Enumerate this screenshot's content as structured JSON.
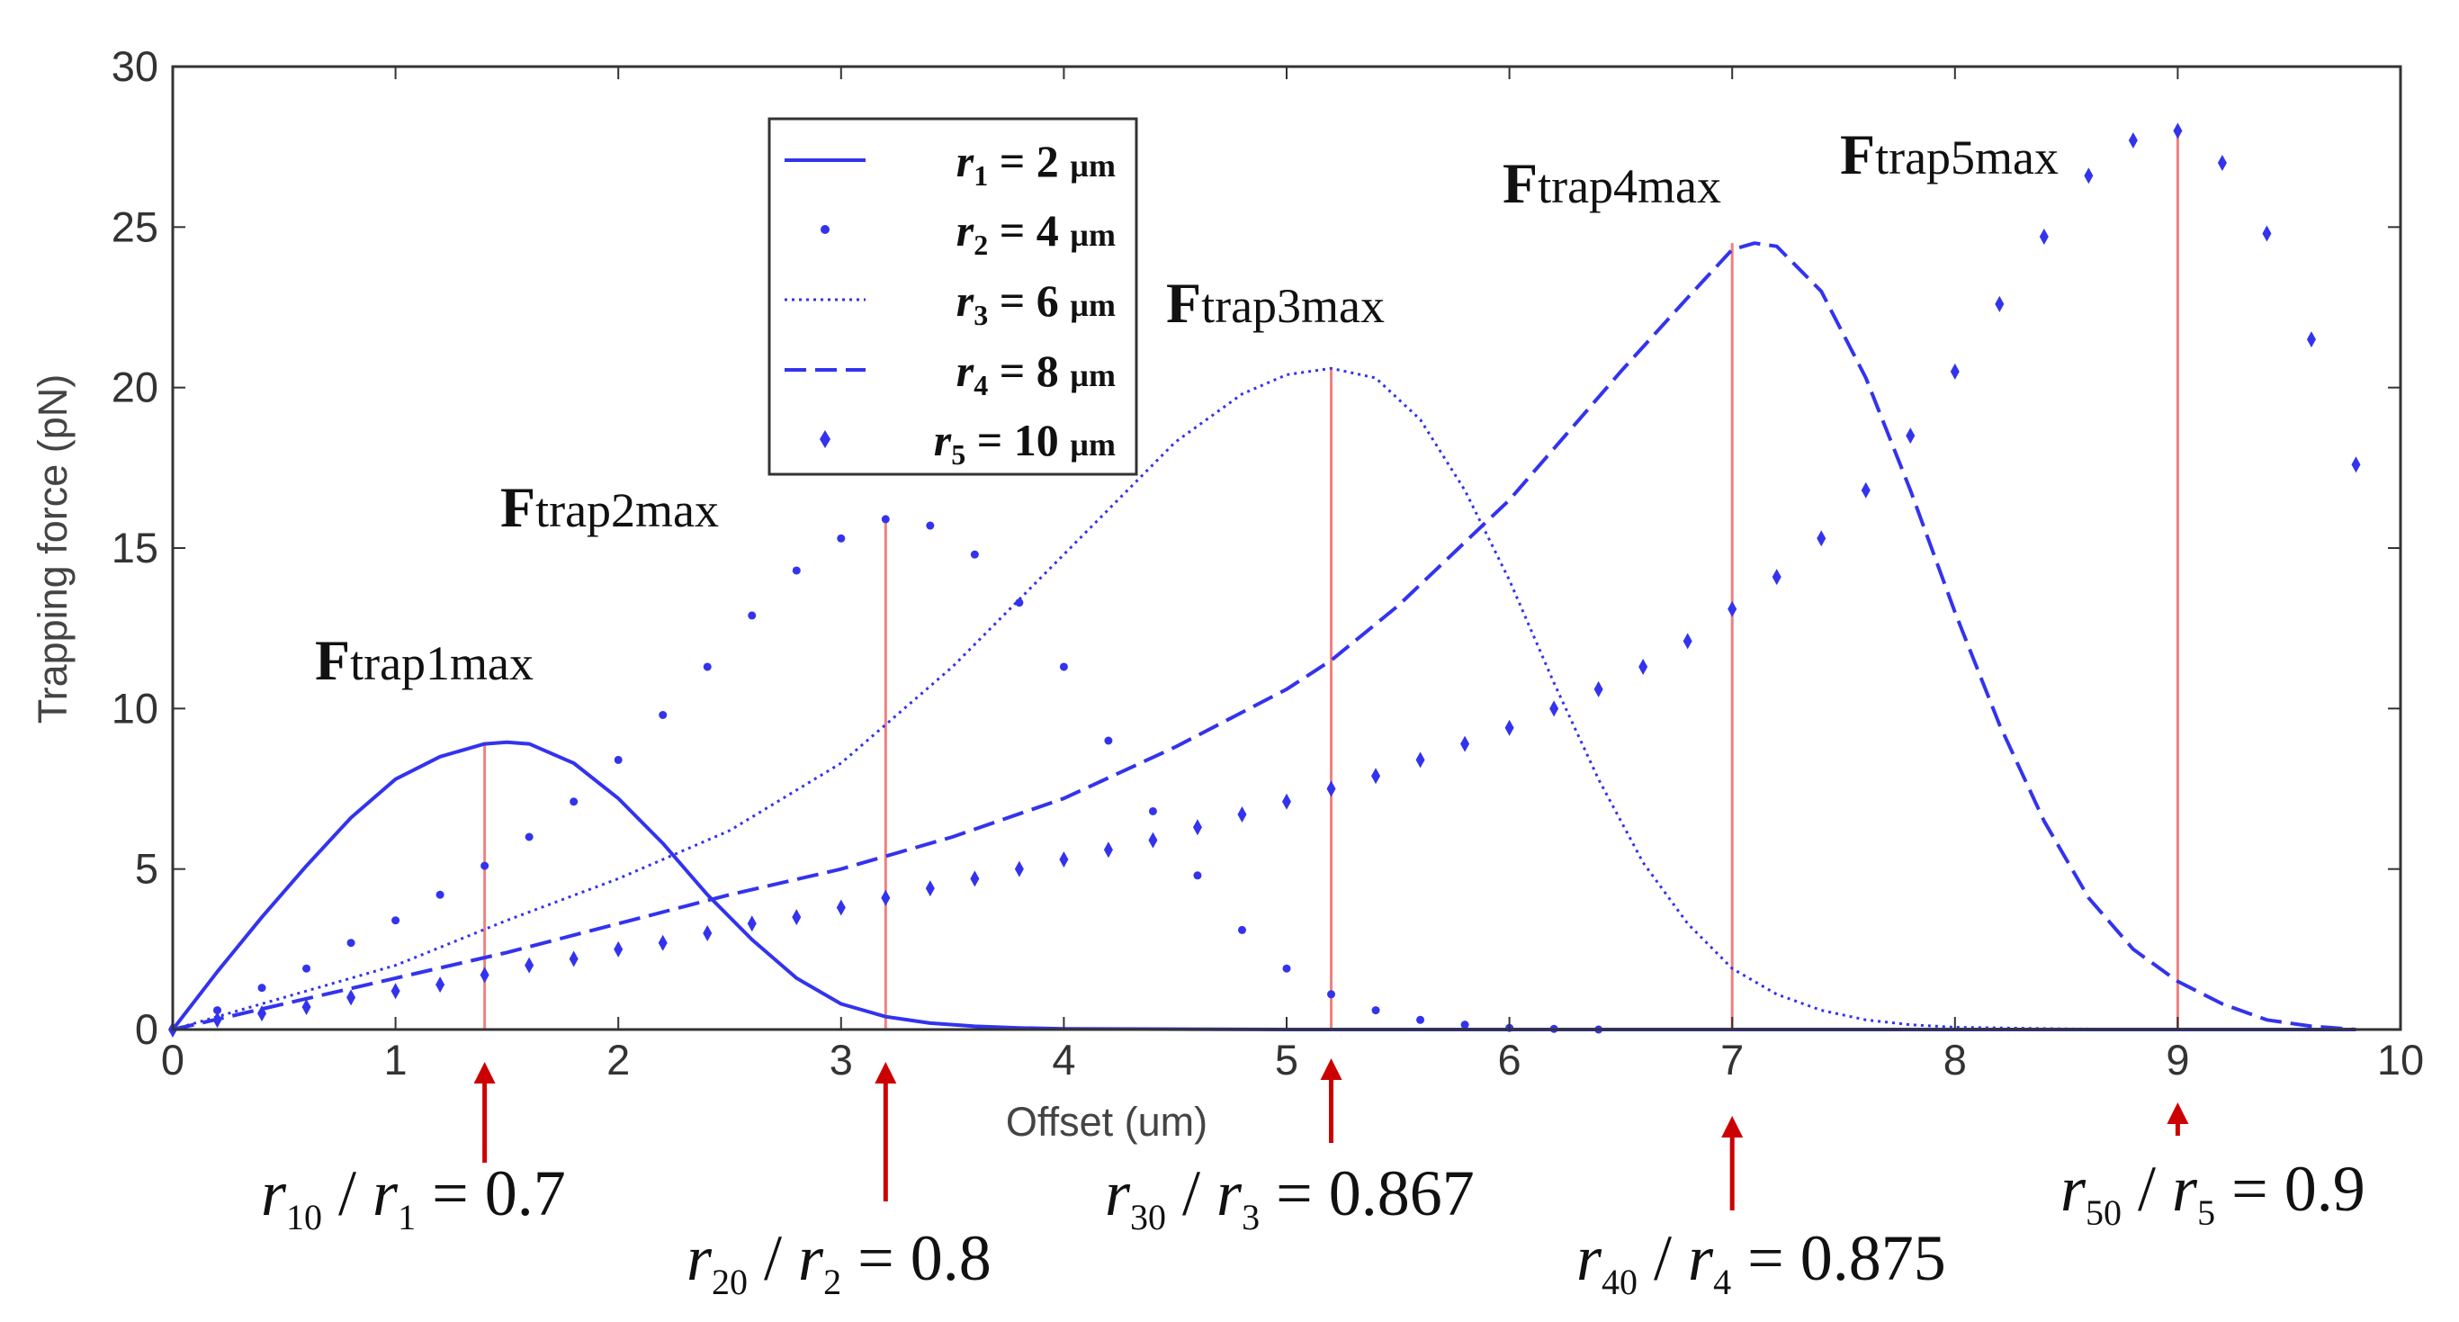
{
  "chart_data": {
    "type": "line",
    "title": "",
    "xlabel": "Offset (um)",
    "ylabel": "Trapping force (pN)",
    "xlim": [
      0,
      10
    ],
    "ylim": [
      0,
      30
    ],
    "xticks": [
      0,
      1,
      2,
      3,
      4,
      5,
      6,
      7,
      8,
      9,
      10
    ],
    "yticks": [
      0,
      5,
      10,
      15,
      20,
      25,
      30
    ],
    "legend_position": "top-center",
    "colors": {
      "series": "#3333ee",
      "marker_line": "#f08080",
      "arrow": "#cc0000",
      "axis": "#333333"
    },
    "series": [
      {
        "name": "r1 = 2 µm",
        "legend_italic": "r",
        "legend_sub": "1",
        "legend_rest": " = 2 ",
        "legend_unit": "µm",
        "style": "solid",
        "x": [
          0,
          0.2,
          0.4,
          0.6,
          0.8,
          1.0,
          1.2,
          1.4,
          1.5,
          1.6,
          1.8,
          2.0,
          2.2,
          2.4,
          2.6,
          2.8,
          3.0,
          3.2,
          3.4,
          3.6,
          3.8,
          4.0,
          5.0,
          6.0,
          7.0,
          8.0,
          9.0,
          9.8
        ],
        "y": [
          0,
          1.8,
          3.5,
          5.1,
          6.6,
          7.8,
          8.5,
          8.9,
          8.95,
          8.9,
          8.3,
          7.2,
          5.8,
          4.2,
          2.8,
          1.6,
          0.8,
          0.4,
          0.2,
          0.1,
          0.05,
          0.02,
          0,
          0,
          0,
          0,
          0,
          0
        ]
      },
      {
        "name": "r2 = 4 µm",
        "legend_italic": "r",
        "legend_sub": "2",
        "legend_rest": " = 4 ",
        "legend_unit": "µm",
        "style": "dots",
        "x": [
          0,
          0.2,
          0.4,
          0.6,
          0.8,
          1.0,
          1.2,
          1.4,
          1.6,
          1.8,
          2.0,
          2.2,
          2.4,
          2.6,
          2.8,
          3.0,
          3.2,
          3.4,
          3.6,
          3.8,
          4.0,
          4.2,
          4.4,
          4.6,
          4.8,
          5.0,
          5.2,
          5.4,
          5.6,
          5.8,
          6.0,
          6.2,
          6.4
        ],
        "y": [
          0,
          0.6,
          1.3,
          1.9,
          2.7,
          3.4,
          4.2,
          5.1,
          6.0,
          7.1,
          8.4,
          9.8,
          11.3,
          12.9,
          14.3,
          15.3,
          15.9,
          15.7,
          14.8,
          13.3,
          11.3,
          9.0,
          6.8,
          4.8,
          3.1,
          1.9,
          1.1,
          0.6,
          0.3,
          0.15,
          0.05,
          0.02,
          0
        ]
      },
      {
        "name": "r3 = 6 µm",
        "legend_italic": "r",
        "legend_sub": "3",
        "legend_rest": " = 6 ",
        "legend_unit": "µm",
        "style": "dotted",
        "x": [
          0,
          0.5,
          1.0,
          1.5,
          2.0,
          2.5,
          3.0,
          3.5,
          4.0,
          4.5,
          4.8,
          5.0,
          5.2,
          5.4,
          5.6,
          5.8,
          6.0,
          6.2,
          6.4,
          6.6,
          6.8,
          7.0,
          7.2,
          7.4,
          7.6,
          7.8,
          8.0,
          8.5,
          9.0,
          9.8
        ],
        "y": [
          0,
          1.0,
          2.0,
          3.4,
          4.7,
          6.2,
          8.3,
          11.3,
          14.8,
          18.3,
          19.8,
          20.4,
          20.6,
          20.3,
          19.0,
          16.8,
          14.0,
          10.8,
          7.8,
          5.2,
          3.3,
          1.9,
          1.1,
          0.6,
          0.3,
          0.15,
          0.07,
          0.02,
          0,
          0
        ]
      },
      {
        "name": "r4 = 8 µm",
        "legend_italic": "r",
        "legend_sub": "4",
        "legend_rest": " = 8 ",
        "legend_unit": "µm",
        "style": "dashed",
        "x": [
          0,
          0.5,
          1.0,
          1.5,
          2.0,
          2.5,
          3.0,
          3.5,
          4.0,
          4.5,
          5.0,
          5.2,
          5.5,
          6.0,
          6.5,
          6.8,
          7.0,
          7.1,
          7.2,
          7.4,
          7.6,
          7.8,
          8.0,
          8.2,
          8.4,
          8.6,
          8.8,
          9.0,
          9.2,
          9.4,
          9.6,
          9.8
        ],
        "y": [
          0,
          0.8,
          1.6,
          2.4,
          3.3,
          4.2,
          5.0,
          6.0,
          7.2,
          8.8,
          10.6,
          11.5,
          13.2,
          16.5,
          20.5,
          22.8,
          24.3,
          24.5,
          24.4,
          23.0,
          20.3,
          16.8,
          13.0,
          9.5,
          6.5,
          4.1,
          2.5,
          1.5,
          0.8,
          0.3,
          0.1,
          0
        ]
      },
      {
        "name": "r5 = 10 µm",
        "legend_italic": "r",
        "legend_sub": "5",
        "legend_rest": " = 10 ",
        "legend_unit": "µm",
        "style": "markers",
        "x": [
          0,
          0.2,
          0.4,
          0.6,
          0.8,
          1.0,
          1.2,
          1.4,
          1.6,
          1.8,
          2.0,
          2.2,
          2.4,
          2.6,
          2.8,
          3.0,
          3.2,
          3.4,
          3.6,
          3.8,
          4.0,
          4.2,
          4.4,
          4.6,
          4.8,
          5.0,
          5.2,
          5.4,
          5.6,
          5.8,
          6.0,
          6.2,
          6.4,
          6.6,
          6.8,
          7.0,
          7.2,
          7.4,
          7.6,
          7.8,
          8.0,
          8.2,
          8.4,
          8.6,
          8.8,
          9.0,
          9.2,
          9.4,
          9.6,
          9.8
        ],
        "y": [
          0,
          0.3,
          0.5,
          0.7,
          1.0,
          1.2,
          1.4,
          1.7,
          2.0,
          2.2,
          2.5,
          2.7,
          3.0,
          3.3,
          3.5,
          3.8,
          4.1,
          4.4,
          4.7,
          5.0,
          5.3,
          5.6,
          5.9,
          6.3,
          6.7,
          7.1,
          7.5,
          7.9,
          8.4,
          8.9,
          9.4,
          10.0,
          10.6,
          11.3,
          12.1,
          13.1,
          14.1,
          15.3,
          16.8,
          18.5,
          20.5,
          22.6,
          24.7,
          26.6,
          27.7,
          28.0,
          27.0,
          24.8,
          21.5,
          17.6
        ]
      }
    ],
    "peak_labels": [
      {
        "bold": "F",
        "rest": "trap1max",
        "x": 1.4,
        "y": 8.9
      },
      {
        "bold": "F",
        "rest": "trap2max",
        "x": 3.2,
        "y": 15.9
      },
      {
        "bold": "F",
        "rest": "trap3max",
        "x": 5.2,
        "y": 20.6
      },
      {
        "bold": "F",
        "rest": "trap4max",
        "x": 7.0,
        "y": 24.5
      },
      {
        "bold": "F",
        "rest": "trap5max",
        "x": 9.0,
        "y": 28.0
      }
    ],
    "ratio_annotations": [
      {
        "x": 1.4,
        "num": "r",
        "num_sub": "10",
        "den": "r",
        "den_sub": "1",
        "value": "0.7"
      },
      {
        "x": 3.2,
        "num": "r",
        "num_sub": "20",
        "den": "r",
        "den_sub": "2",
        "value": "0.8"
      },
      {
        "x": 5.2,
        "num": "r",
        "num_sub": "30",
        "den": "r",
        "den_sub": "3",
        "value": "0.867"
      },
      {
        "x": 7.0,
        "num": "r",
        "num_sub": "40",
        "den": "r",
        "den_sub": "4",
        "value": "0.875"
      },
      {
        "x": 9.0,
        "num": "r",
        "num_sub": "50",
        "den": "r",
        "den_sub": "5",
        "value": "0.9"
      }
    ]
  }
}
